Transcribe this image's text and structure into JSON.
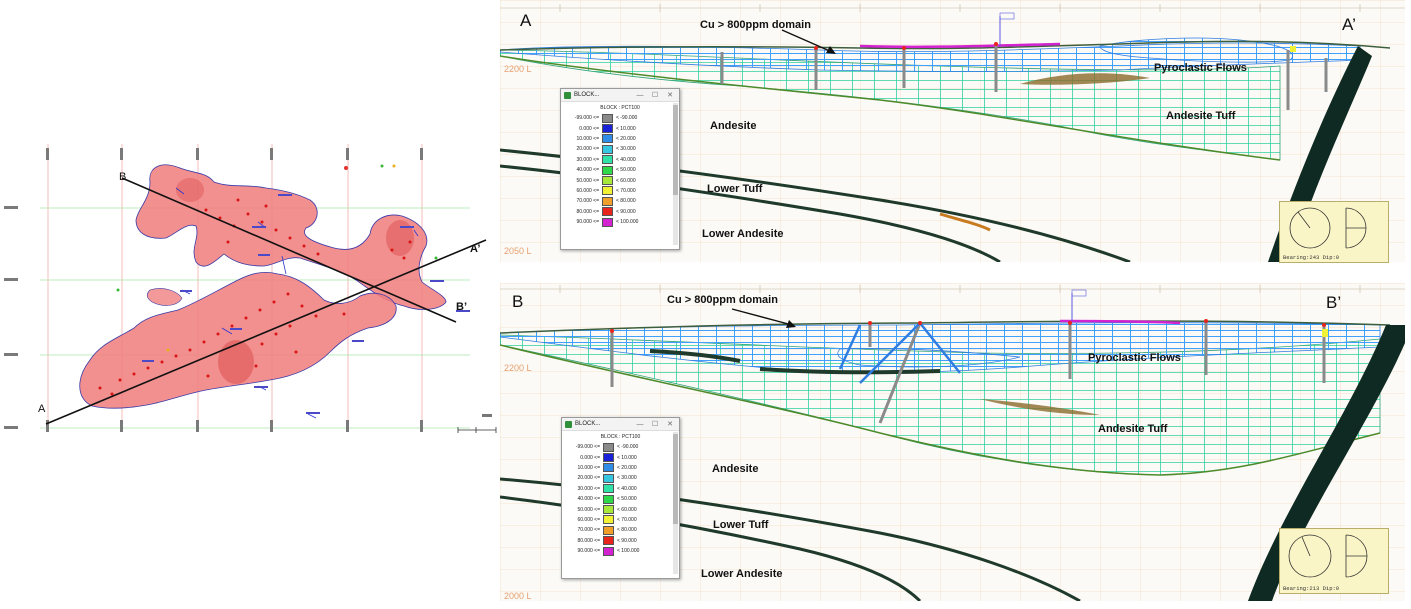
{
  "map": {
    "line_a_label": "A",
    "line_a_end_label": "A’",
    "line_b_label": "B",
    "line_b_end_label": "B’"
  },
  "section_a": {
    "start_label": "A",
    "end_label": "A’",
    "domain_label": "Cu > 800ppm domain",
    "units": {
      "pyroclastic": "Pyroclastic Flows",
      "andesite_tuff": "Andesite Tuff",
      "andesite": "Andesite",
      "lower_tuff": "Lower Tuff",
      "lower_andesite": "Lower Andesite"
    },
    "elevations": [
      "2200 L",
      "2050 L"
    ],
    "compass_readout": "Bearing:243  Dip:0"
  },
  "section_b": {
    "start_label": "B",
    "end_label": "B’",
    "domain_label": "Cu > 800ppm domain",
    "units": {
      "pyroclastic": "Pyroclastic Flows",
      "andesite_tuff": "Andesite Tuff",
      "andesite": "Andesite",
      "lower_tuff": "Lower Tuff",
      "lower_andesite": "Lower Andesite"
    },
    "elevations": [
      "2200 L",
      "2000 L"
    ],
    "compass_readout": "Bearing:213  Dip:0"
  },
  "legend": {
    "window_title": "BLOCK...",
    "header": "BLOCK : PCT100",
    "rows": [
      {
        "lo": "-99.000 <=",
        "hi": "< -90.000",
        "color": "#8a8a8a"
      },
      {
        "lo": "0.000 <=",
        "hi": "< 10.000",
        "color": "#1a22d8"
      },
      {
        "lo": "10.000 <=",
        "hi": "< 20.000",
        "color": "#2f8de8"
      },
      {
        "lo": "20.000 <=",
        "hi": "< 30.000",
        "color": "#37c6df"
      },
      {
        "lo": "30.000 <=",
        "hi": "< 40.000",
        "color": "#2fe2a8"
      },
      {
        "lo": "40.000 <=",
        "hi": "< 50.000",
        "color": "#2fd84a"
      },
      {
        "lo": "50.000 <=",
        "hi": "< 60.000",
        "color": "#a7e83a"
      },
      {
        "lo": "60.000 <=",
        "hi": "< 70.000",
        "color": "#f1f136"
      },
      {
        "lo": "70.000 <=",
        "hi": "< 80.000",
        "color": "#f0a02a"
      },
      {
        "lo": "80.000 <=",
        "hi": "< 90.000",
        "color": "#e8241d"
      },
      {
        "lo": "90.000 <=",
        "hi": "< 100.000",
        "color": "#d323d0"
      }
    ]
  },
  "colors": {
    "orebody_fill": "#f08080",
    "orebody_edge": "#3a3aa8",
    "tuff_green": "#2fd1a0",
    "block_blue": "#3fa0ff",
    "dark_band": "#1f3a2a",
    "fault": "#0f2a22",
    "grid_orange": "#f4c9a8",
    "compass_bg": "#faf5c6"
  }
}
